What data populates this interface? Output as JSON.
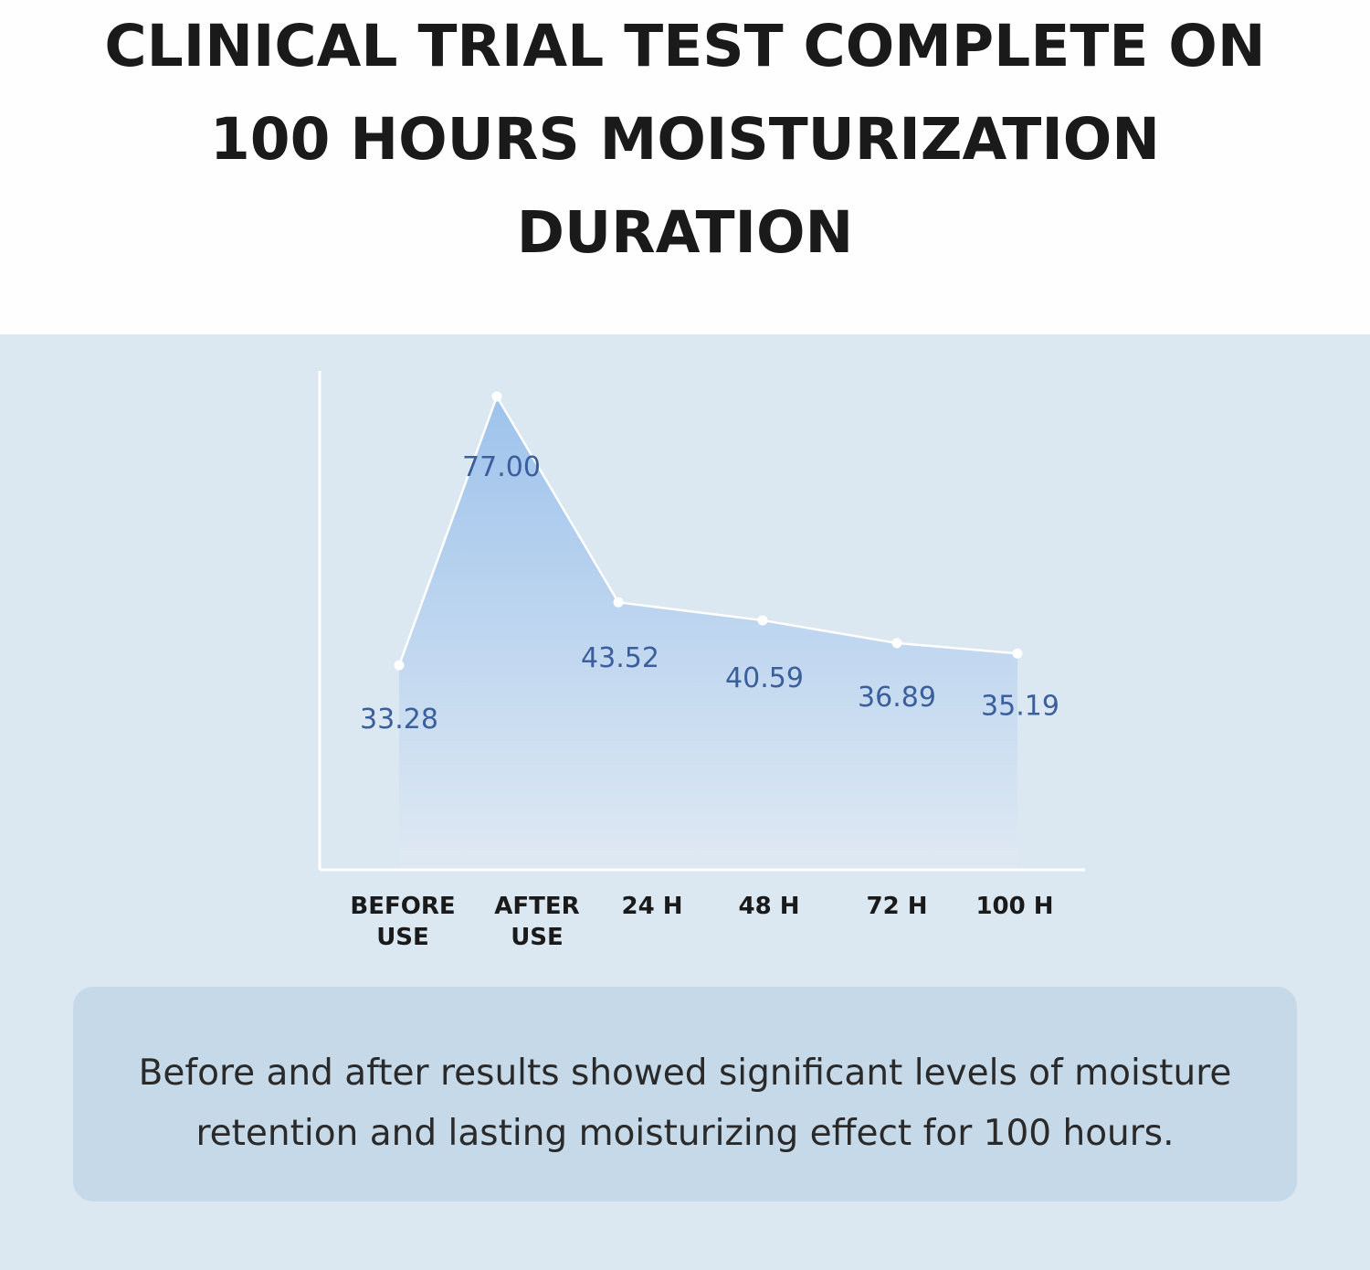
{
  "title": {
    "lines": [
      "CLINICAL TRIAL TEST COMPLETE ON",
      "100 HOURS MOISTURIZATION",
      "DURATION"
    ]
  },
  "chart_data": {
    "type": "area",
    "categories": [
      "BEFORE USE",
      "AFTER USE",
      "24 H",
      "48 H",
      "72 H",
      "100 H"
    ],
    "category_lines": [
      [
        "BEFORE",
        "USE"
      ],
      [
        "AFTER",
        "USE"
      ],
      [
        "24 H"
      ],
      [
        "48 H"
      ],
      [
        "72 H"
      ],
      [
        "100 H"
      ]
    ],
    "values": [
      33.28,
      77.0,
      43.52,
      40.59,
      36.89,
      35.19
    ],
    "data_labels": [
      "33.28",
      "77.00",
      "43.52",
      "40.59",
      "36.89",
      "35.19"
    ],
    "title": "",
    "xlabel": "",
    "ylabel": "",
    "ylim": [
      0,
      82
    ],
    "grid": false,
    "legend": "none",
    "colors": {
      "fill_top": "#9ec3ec",
      "fill_bottom": "#dfe9f3",
      "line": "#ffffff",
      "axis": "#ffffff",
      "value_label": "#3b5f9c",
      "category_label": "#1a1a1a"
    }
  },
  "caption": {
    "lines": [
      "Before and after results showed significant levels of moisture",
      "retention and  lasting moisturizing effect for 100 hours."
    ]
  }
}
